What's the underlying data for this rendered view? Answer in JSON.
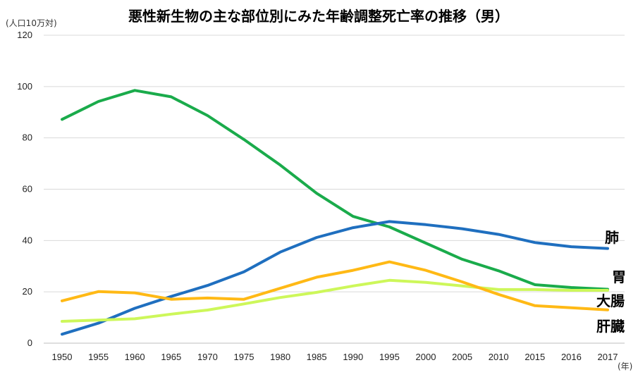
{
  "chart_data": {
    "type": "line",
    "title": "悪性新生物の主な部位別にみた年齢調整死亡率の推移（男）",
    "y_unit": "(人口10万対)",
    "x_unit": "(年)",
    "categories": [
      "1950",
      "1955",
      "1960",
      "1965",
      "1970",
      "1975",
      "1980",
      "1985",
      "1990",
      "1995",
      "2000",
      "2005",
      "2010",
      "2015",
      "2016",
      "2017"
    ],
    "ylim": [
      0,
      120
    ],
    "yticks": [
      0,
      20,
      40,
      60,
      80,
      100,
      120
    ],
    "grid": true,
    "series": [
      {
        "name": "胃",
        "color": "#1aab4b",
        "values": [
          87.2,
          94.2,
          98.5,
          96.0,
          88.7,
          79.4,
          69.4,
          58.4,
          49.4,
          45.3,
          39.0,
          32.7,
          28.2,
          22.8,
          21.7,
          21.0
        ]
      },
      {
        "name": "肺",
        "color": "#1f6fbf",
        "values": [
          3.5,
          7.8,
          13.6,
          18.2,
          22.5,
          27.8,
          35.5,
          41.2,
          45.0,
          47.4,
          46.2,
          44.6,
          42.4,
          39.2,
          37.6,
          36.9
        ]
      },
      {
        "name": "大腸",
        "color": "#cdf75a",
        "values": [
          8.5,
          9.0,
          9.5,
          11.3,
          12.9,
          15.3,
          17.8,
          19.8,
          22.3,
          24.5,
          23.7,
          22.3,
          20.9,
          20.9,
          20.6,
          20.6
        ]
      },
      {
        "name": "肝臓",
        "color": "#ffb915",
        "values": [
          16.5,
          20.1,
          19.6,
          17.1,
          17.6,
          17.1,
          21.4,
          25.7,
          28.4,
          31.7,
          28.4,
          23.9,
          19.0,
          14.6,
          13.8,
          13.0
        ]
      }
    ],
    "series_labels": [
      "肺",
      "胃",
      "大腸",
      "肝臓"
    ]
  }
}
